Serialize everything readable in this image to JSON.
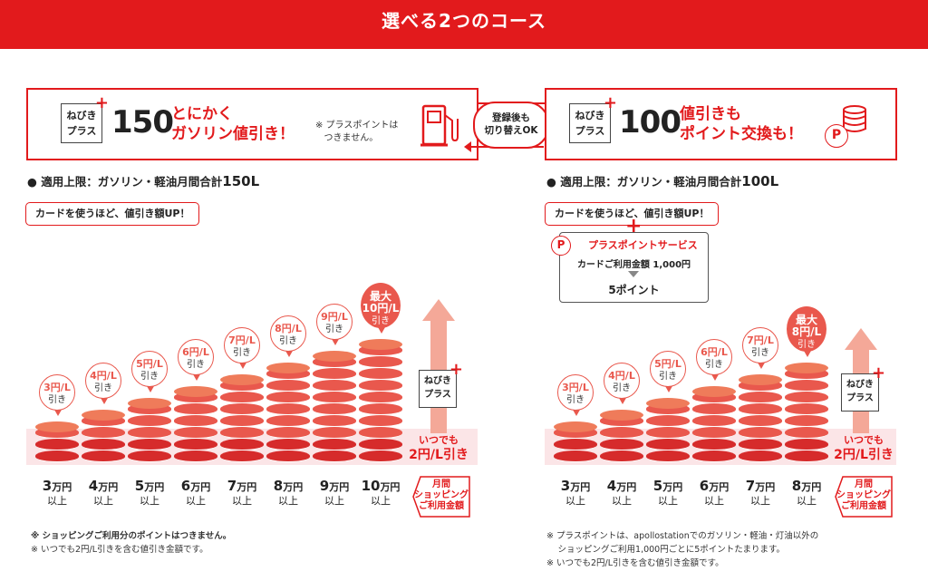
{
  "banner": {
    "title": "選べる2つのコース"
  },
  "logo": {
    "line1": "ねびき",
    "line2": "プラス",
    "plus": "+"
  },
  "course1": {
    "number": "150",
    "catch_line1": "とにかく",
    "catch_line2": "ガソリン値引き！",
    "note_line1": "※ プラスポイントは",
    "note_line2": "つきません。",
    "limit_label": "● 適用上限：ガソリン・軽油月間合計",
    "limit_value": "150L",
    "pill": "カードを使うほど、値引き額UP！"
  },
  "switch": {
    "line1": "登録後も",
    "line2": "切り替えOK"
  },
  "course2": {
    "number": "100",
    "catch_line1": "値引きも",
    "catch_line2": "ポイント交換も！",
    "limit_label": "● 適用上限：ガソリン・軽油月間合計",
    "limit_value": "100L",
    "pill": "カードを使うほど、値引き額UP！",
    "plus_sign": "+",
    "pps_title": "プラスポイントサービス",
    "pps_rate": "カードご利用金額 1,000円",
    "pps_points": "5ポイント",
    "p_icon": "P"
  },
  "chart1": {
    "bars": [
      {
        "yen": "3",
        "unit": "万円",
        "sub": "以上",
        "discount": "3円/L",
        "disc_sub": "引き"
      },
      {
        "yen": "4",
        "unit": "万円",
        "sub": "以上",
        "discount": "4円/L",
        "disc_sub": "引き"
      },
      {
        "yen": "5",
        "unit": "万円",
        "sub": "以上",
        "discount": "5円/L",
        "disc_sub": "引き"
      },
      {
        "yen": "6",
        "unit": "万円",
        "sub": "以上",
        "discount": "6円/L",
        "disc_sub": "引き"
      },
      {
        "yen": "7",
        "unit": "万円",
        "sub": "以上",
        "discount": "7円/L",
        "disc_sub": "引き"
      },
      {
        "yen": "8",
        "unit": "万円",
        "sub": "以上",
        "discount": "8円/L",
        "disc_sub": "引き"
      },
      {
        "yen": "9",
        "unit": "万円",
        "sub": "以上",
        "discount": "9円/L",
        "disc_sub": "引き"
      },
      {
        "yen": "10",
        "unit": "万円",
        "sub": "以上",
        "discount": "10円/L",
        "disc_sub": "引き",
        "max_label": "最大"
      }
    ],
    "itsumo_line1": "いつでも",
    "itsumo_line2": "2円/L引き",
    "axis_tag": [
      "月間",
      "ショッピング",
      "ご利用金額"
    ]
  },
  "chart2": {
    "bars": [
      {
        "yen": "3",
        "unit": "万円",
        "sub": "以上",
        "discount": "3円/L",
        "disc_sub": "引き"
      },
      {
        "yen": "4",
        "unit": "万円",
        "sub": "以上",
        "discount": "4円/L",
        "disc_sub": "引き"
      },
      {
        "yen": "5",
        "unit": "万円",
        "sub": "以上",
        "discount": "5円/L",
        "disc_sub": "引き"
      },
      {
        "yen": "6",
        "unit": "万円",
        "sub": "以上",
        "discount": "6円/L",
        "disc_sub": "引き"
      },
      {
        "yen": "7",
        "unit": "万円",
        "sub": "以上",
        "discount": "7円/L",
        "disc_sub": "引き"
      },
      {
        "yen": "8",
        "unit": "万円",
        "sub": "以上",
        "discount": "8円/L",
        "disc_sub": "引き",
        "max_label": "最大"
      }
    ],
    "itsumo_line1": "いつでも",
    "itsumo_line2": "2円/L引き",
    "axis_tag": [
      "月間",
      "ショッピング",
      "ご利用金額"
    ]
  },
  "footnotes_left": [
    "※ ショッピングご利用分のポイントはつきません。",
    "※ いつでも2円/L引きを含む値引き金額です。"
  ],
  "footnotes_right": [
    "※ プラスポイントは、apollostationでのガソリン・軽油・灯油以外の",
    "　 ショッピングご利用1,000円ごとに5ポイントたまります。",
    "※ いつでも2円/L引きを含む値引き金額です。"
  ],
  "colors": {
    "brand_red": "#e21a1c",
    "coin_top": "#ef7b5a",
    "coin_side": "#e9584d",
    "coin_base": "#d62b2b",
    "band": "#fbe5e7"
  }
}
